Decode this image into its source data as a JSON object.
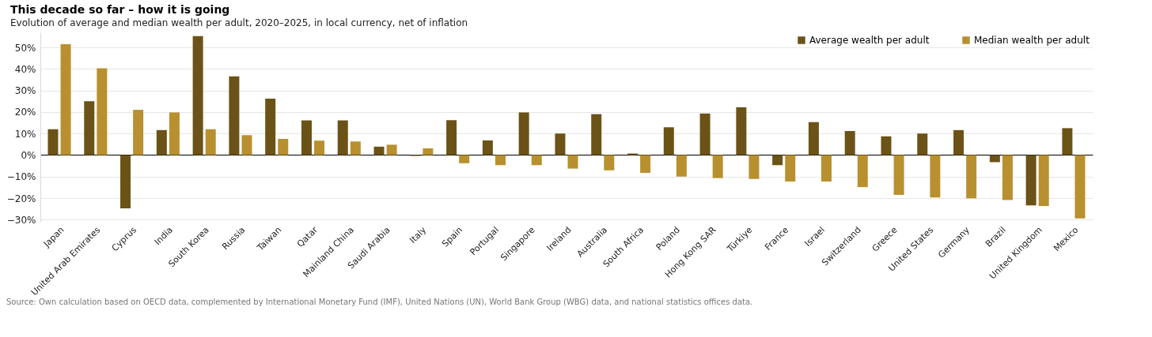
{
  "chart_data": {
    "type": "bar",
    "title": "This decade so far – how it is going",
    "subtitle": "Evolution of average and median wealth per adult, 2020–2025, in local currency, net of inflation",
    "categories": [
      "Japan",
      "United Arab Emirates",
      "Cyprus",
      "India",
      "South Korea",
      "Russia",
      "Taiwan",
      "Qatar",
      "Mainland China",
      "Saudi Arabia",
      "Italy",
      "Spain",
      "Portugal",
      "Singapore",
      "Ireland",
      "Australia",
      "South Africa",
      "Poland",
      "Hong Kong SAR",
      "Türkiye",
      "France",
      "Israel",
      "Switzerland",
      "Greece",
      "United States",
      "Germany",
      "Brazil",
      "United Kingdom",
      "Mexico"
    ],
    "series": [
      {
        "name": "Average wealth per adult",
        "color": "#6b5217",
        "values": [
          12,
          25,
          -24.8,
          11.6,
          55.3,
          36.6,
          26.2,
          16.1,
          16.1,
          3.9,
          -0.4,
          16.2,
          6.8,
          19.8,
          10,
          19,
          0.7,
          12.9,
          19.3,
          22.2,
          -4.7,
          15.3,
          11.2,
          8.7,
          10,
          11.6,
          -3.3,
          -23.4,
          12.5
        ]
      },
      {
        "name": "Median wealth per adult",
        "color": "#b8902f",
        "values": [
          51.5,
          40.3,
          21,
          19.8,
          12,
          9.2,
          7.5,
          6.7,
          6.3,
          4.8,
          3.1,
          -3.8,
          -4.7,
          -4.7,
          -6.3,
          -7.1,
          -8.3,
          -10,
          -10.7,
          -11.1,
          -12.3,
          -12.3,
          -14.9,
          -18.5,
          -19.7,
          -20.1,
          -20.9,
          -23.7,
          -29.4
        ]
      }
    ],
    "ylim": [
      -31,
      57
    ],
    "yticks": [
      {
        "value": -30,
        "label": "−30%"
      },
      {
        "value": -20,
        "label": "−20%"
      },
      {
        "value": -10,
        "label": "−10%"
      },
      {
        "value": 0,
        "label": "0%"
      },
      {
        "value": 10,
        "label": "10%"
      },
      {
        "value": 20,
        "label": "20%"
      },
      {
        "value": 30,
        "label": "30%"
      },
      {
        "value": 40,
        "label": "40%"
      },
      {
        "value": 50,
        "label": "50%"
      }
    ],
    "grid": "y",
    "legend": "top right",
    "annotations": [
      "Source: Own calculation based on OECD data, complemented by International Monetary Fund (IMF), United Nations (UN), World Bank Group (WBG) data, and national statistics offices data."
    ]
  }
}
